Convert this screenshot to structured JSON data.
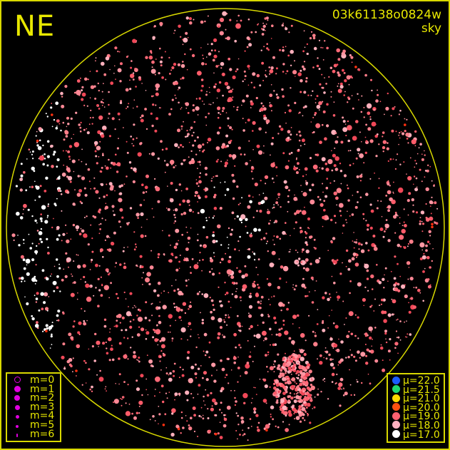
{
  "header": {
    "direction": "NE",
    "image_id": "03k61138o0824w",
    "mode": "sky"
  },
  "colors": {
    "frame": "#d8d800",
    "horizon_circle": "#d8d800",
    "text": "#e8e800",
    "magnitude_marker": "#e000e0"
  },
  "magnitude_legend": [
    {
      "label": "m=0",
      "size": 0
    },
    {
      "label": "m=1",
      "size": 1
    },
    {
      "label": "m=2",
      "size": 2
    },
    {
      "label": "m=3",
      "size": 3
    },
    {
      "label": "m=4",
      "size": 4
    },
    {
      "label": "m=5",
      "size": 5
    },
    {
      "label": "m=6",
      "size": 6
    }
  ],
  "brightness_legend": [
    {
      "label": "μ=22.0",
      "color": "#1a5cff"
    },
    {
      "label": "μ=21.5",
      "color": "#1fd870"
    },
    {
      "label": "μ=21.0",
      "color": "#ffd800"
    },
    {
      "label": "μ=20.0",
      "color": "#ff5010"
    },
    {
      "label": "μ=19.0",
      "color": "#ff6070"
    },
    {
      "label": "μ=18.0",
      "color": "#ffb0c0"
    },
    {
      "label": "μ=17.0",
      "color": "#ffffff"
    }
  ]
}
